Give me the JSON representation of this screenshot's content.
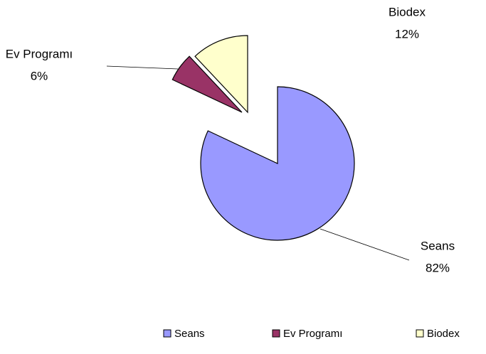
{
  "chart_data": {
    "type": "pie",
    "categories": [
      "Seans",
      "Ev Programı",
      "Biodex"
    ],
    "values": [
      82,
      6,
      12
    ],
    "value_labels": [
      "82%",
      "6%",
      "12%"
    ],
    "colors": [
      "#9999ff",
      "#993366",
      "#ffffcc"
    ],
    "legend": "bottom"
  }
}
